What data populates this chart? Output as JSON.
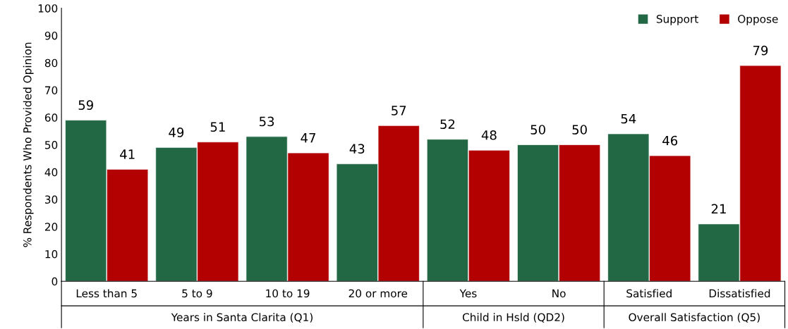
{
  "chart_data": {
    "type": "bar",
    "ylabel": "% Respondents Who Provided Opinion",
    "categories": [
      "Less than 5",
      "5 to 9",
      "10 to 19",
      "20 or more",
      "Yes",
      "No",
      "Satisfied",
      "Dissatisfied"
    ],
    "series": [
      {
        "name": "Support",
        "color": "#236845",
        "values": [
          59,
          49,
          53,
          43,
          52,
          50,
          54,
          21
        ]
      },
      {
        "name": "Oppose",
        "color": "#b30000",
        "values": [
          41,
          51,
          47,
          57,
          48,
          50,
          46,
          79
        ]
      }
    ],
    "ylim": [
      0,
      100
    ],
    "yticks": [
      0,
      10,
      20,
      30,
      40,
      50,
      60,
      70,
      80,
      90,
      100
    ],
    "data_labels": true,
    "grid": false,
    "legend": "top right",
    "annotations": [
      "Years in Santa Clarita (Q1)",
      "Child in Hsld (QD2)",
      "Overall Satisfaction (Q5)"
    ]
  }
}
